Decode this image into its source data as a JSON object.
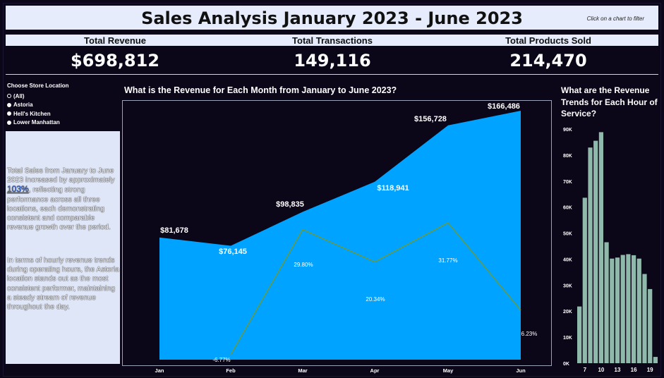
{
  "header": {
    "title": "Sales Analysis January 2023 - June 2023",
    "hint": "Click on a chart to filter"
  },
  "kpis": [
    {
      "label": "Total Revenue",
      "value": "$698,812"
    },
    {
      "label": "Total Transactions",
      "value": "149,116"
    },
    {
      "label": "Total Products Sold",
      "value": "214,470"
    }
  ],
  "filter": {
    "label": "Choose Store Location",
    "options": [
      "(All)",
      "Astoria",
      "Hell's Kitchen",
      "Lower Manhattan"
    ],
    "selected": "(All)"
  },
  "summary": {
    "p1_a": "Total Sales from January to June 2023 increased by approximately",
    "p1_pct": "103%",
    "p1_b": ", reflecting strong performance across all three locations, each demonstrating consistent and comparable revenue growth over the period.",
    "p2": "In terms of hourly revenue trends during operating hours, the Astoria location stands out as the most consistent performer, maintaining a steady stream of revenue throughout the day."
  },
  "colors": {
    "background": "#0b0618",
    "area_fill": "#00a3ff",
    "growth_line": "#6b9a3a",
    "bar_fill": "#8fb9aa",
    "header_bg": "#e6ecfb"
  },
  "chart_data": [
    {
      "type": "area",
      "title": "What is the Revenue for Each Month from January to June 2023?",
      "categories": [
        "Jan",
        "Feb",
        "Mar",
        "Apr",
        "May",
        "Jun"
      ],
      "series": [
        {
          "values": [
            81678,
            76145,
            98835,
            118941,
            156728,
            166486
          ],
          "labels": [
            "$81,678",
            "$76,145",
            "$98,835",
            "$118,941",
            "$156,728",
            "$166,486"
          ]
        },
        {
          "values": [
            null,
            -6.77,
            29.8,
            20.34,
            31.77,
            6.23
          ],
          "labels": [
            "",
            "-6.77%",
            "29.80%",
            "20.34%",
            "31.77%",
            "6.23%"
          ]
        }
      ],
      "ylim": [
        0,
        170000
      ],
      "growth_ylim": [
        -8,
        60
      ],
      "grid": false
    },
    {
      "type": "bar",
      "title": "What are the Revenue Trends for Each Hour of Service?",
      "categories": [
        6,
        7,
        8,
        9,
        10,
        11,
        12,
        13,
        14,
        15,
        16,
        17,
        18,
        19,
        20
      ],
      "values": [
        21800,
        63600,
        82900,
        85500,
        88800,
        46500,
        40200,
        40600,
        41600,
        41900,
        41500,
        40200,
        34300,
        28500,
        2400
      ],
      "xtick_labels": [
        "7",
        "10",
        "13",
        "16",
        "19"
      ],
      "xticks_at": [
        7,
        10,
        13,
        16,
        19
      ],
      "yticks": [
        "0K",
        "10K",
        "20K",
        "30K",
        "40K",
        "50K",
        "60K",
        "70K",
        "80K",
        "90K"
      ],
      "ylim": [
        0,
        90000
      ],
      "grid": false
    }
  ]
}
